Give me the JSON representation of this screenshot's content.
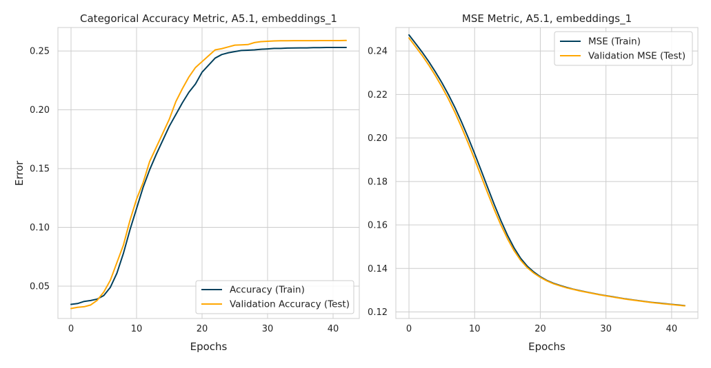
{
  "chart_data": [
    {
      "type": "line",
      "title": "Categorical Accuracy Metric, A5.1, embeddings_1",
      "xlabel": "Epochs",
      "ylabel": "Error",
      "xlim": [
        -2,
        44
      ],
      "ylim": [
        0.0225,
        0.27
      ],
      "xticks": [
        0,
        10,
        20,
        30,
        40
      ],
      "yticks": [
        0.05,
        0.1,
        0.15,
        0.2,
        0.25
      ],
      "ytick_labels": [
        "0.05",
        "0.10",
        "0.15",
        "0.20",
        "0.25"
      ],
      "grid": true,
      "legend_position": "bottom-right",
      "series": [
        {
          "name": "Accuracy (Train)",
          "color": "#003f5c",
          "x": [
            0,
            1,
            2,
            3,
            4,
            5,
            6,
            7,
            8,
            9,
            10,
            11,
            12,
            13,
            14,
            15,
            16,
            17,
            18,
            19,
            20,
            21,
            22,
            23,
            24,
            25,
            26,
            27,
            28,
            29,
            30,
            31,
            32,
            33,
            34,
            35,
            36,
            37,
            38,
            39,
            40,
            41,
            42
          ],
          "values": [
            0.0345,
            0.0352,
            0.037,
            0.0378,
            0.039,
            0.042,
            0.049,
            0.061,
            0.078,
            0.098,
            0.116,
            0.134,
            0.149,
            0.162,
            0.174,
            0.186,
            0.196,
            0.206,
            0.215,
            0.222,
            0.232,
            0.238,
            0.244,
            0.247,
            0.2485,
            0.2495,
            0.2505,
            0.2507,
            0.251,
            0.2515,
            0.2518,
            0.2522,
            0.2522,
            0.2525,
            0.2526,
            0.2527,
            0.2527,
            0.2529,
            0.2529,
            0.253,
            0.253,
            0.253,
            0.253
          ]
        },
        {
          "name": "Validation Accuracy (Test)",
          "color": "#ffa600",
          "x": [
            0,
            1,
            2,
            3,
            4,
            5,
            6,
            7,
            8,
            9,
            10,
            11,
            12,
            13,
            14,
            15,
            16,
            17,
            18,
            19,
            20,
            21,
            22,
            23,
            24,
            25,
            26,
            27,
            28,
            29,
            30,
            31,
            32,
            33,
            34,
            35,
            36,
            37,
            38,
            39,
            40,
            41,
            42
          ],
          "values": [
            0.031,
            0.032,
            0.0325,
            0.034,
            0.038,
            0.045,
            0.055,
            0.07,
            0.085,
            0.106,
            0.124,
            0.138,
            0.156,
            0.168,
            0.18,
            0.192,
            0.207,
            0.218,
            0.228,
            0.236,
            0.241,
            0.246,
            0.251,
            0.252,
            0.2535,
            0.255,
            0.2552,
            0.2555,
            0.2572,
            0.258,
            0.2583,
            0.2586,
            0.2587,
            0.2587,
            0.2588,
            0.2588,
            0.2588,
            0.2588,
            0.2589,
            0.2589,
            0.2589,
            0.2589,
            0.259
          ]
        }
      ]
    },
    {
      "type": "line",
      "title": "MSE Metric, A5.1, embeddings_1",
      "xlabel": "Epochs",
      "ylabel": "",
      "xlim": [
        -2,
        44
      ],
      "ylim": [
        0.117,
        0.2508
      ],
      "xticks": [
        0,
        10,
        20,
        30,
        40
      ],
      "yticks": [
        0.12,
        0.14,
        0.16,
        0.18,
        0.2,
        0.22,
        0.24
      ],
      "ytick_labels": [
        "0.12",
        "0.14",
        "0.16",
        "0.18",
        "0.20",
        "0.22",
        "0.24"
      ],
      "grid": true,
      "legend_position": "top-right",
      "series": [
        {
          "name": "MSE (Train)",
          "color": "#003f5c",
          "x": [
            0,
            1,
            2,
            3,
            4,
            5,
            6,
            7,
            8,
            9,
            10,
            11,
            12,
            13,
            14,
            15,
            16,
            17,
            18,
            19,
            20,
            21,
            22,
            23,
            24,
            25,
            26,
            27,
            28,
            29,
            30,
            31,
            32,
            33,
            34,
            35,
            36,
            37,
            38,
            39,
            40,
            41,
            42
          ],
          "values": [
            0.2474,
            0.2435,
            0.2395,
            0.2352,
            0.2305,
            0.2255,
            0.22,
            0.214,
            0.2074,
            0.2003,
            0.1928,
            0.185,
            0.1771,
            0.1693,
            0.162,
            0.1553,
            0.1495,
            0.1447,
            0.1411,
            0.1384,
            0.1362,
            0.1345,
            0.1332,
            0.1322,
            0.1313,
            0.1305,
            0.1298,
            0.1292,
            0.1286,
            0.128,
            0.1275,
            0.127,
            0.1265,
            0.126,
            0.1256,
            0.1252,
            0.1248,
            0.1244,
            0.1241,
            0.1238,
            0.1235,
            0.1232,
            0.1229
          ]
        },
        {
          "name": "Validation MSE (Test)",
          "color": "#ffa600",
          "x": [
            0,
            1,
            2,
            3,
            4,
            5,
            6,
            7,
            8,
            9,
            10,
            11,
            12,
            13,
            14,
            15,
            16,
            17,
            18,
            19,
            20,
            21,
            22,
            23,
            24,
            25,
            26,
            27,
            28,
            29,
            30,
            31,
            32,
            33,
            34,
            35,
            36,
            37,
            38,
            39,
            40,
            41,
            42
          ],
          "values": [
            0.246,
            0.242,
            0.238,
            0.2336,
            0.2288,
            0.2236,
            0.218,
            0.2118,
            0.205,
            0.1978,
            0.1902,
            0.1824,
            0.1746,
            0.167,
            0.16,
            0.1537,
            0.1482,
            0.1438,
            0.1404,
            0.1379,
            0.1359,
            0.1343,
            0.133,
            0.132,
            0.1311,
            0.1304,
            0.1297,
            0.1291,
            0.1285,
            0.1279,
            0.1274,
            0.1269,
            0.1264,
            0.1259,
            0.1255,
            0.1251,
            0.1247,
            0.1243,
            0.124,
            0.1237,
            0.1234,
            0.1231,
            0.1228
          ]
        }
      ]
    }
  ]
}
